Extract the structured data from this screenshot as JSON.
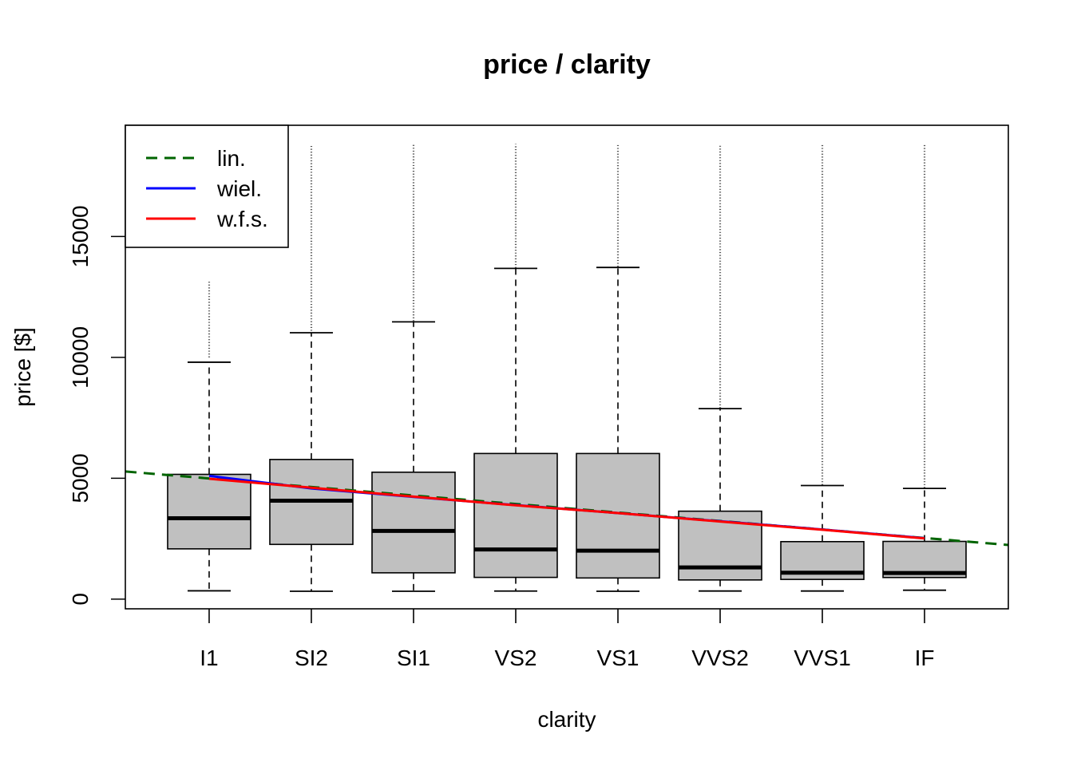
{
  "chart_data": {
    "type": "box",
    "title": "price / clarity",
    "xlabel": "clarity",
    "ylabel": "price [$]",
    "ylim": [
      -400,
      19600
    ],
    "yticks": [
      0,
      5000,
      10000,
      15000
    ],
    "categories": [
      "I1",
      "SI2",
      "SI1",
      "VS2",
      "VS1",
      "VVS2",
      "VVS1",
      "IF"
    ],
    "boxes": [
      {
        "category": "I1",
        "whisker_low": 345,
        "q1": 2080,
        "median": 3344,
        "q3": 5161,
        "whisker_high": 9800,
        "outlier_min": 10000,
        "outlier_max": 13200
      },
      {
        "category": "SI2",
        "whisker_low": 326,
        "q1": 2264,
        "median": 4072,
        "q3": 5777,
        "whisker_high": 11020,
        "outlier_min": 11100,
        "outlier_max": 18804
      },
      {
        "category": "SI1",
        "whisker_low": 326,
        "q1": 1089,
        "median": 2822,
        "q3": 5250,
        "whisker_high": 11470,
        "outlier_min": 11500,
        "outlier_max": 18818
      },
      {
        "category": "VS2",
        "whisker_low": 334,
        "q1": 900,
        "median": 2054,
        "q3": 6024,
        "whisker_high": 13680,
        "outlier_min": 13700,
        "outlier_max": 18823
      },
      {
        "category": "VS1",
        "whisker_low": 327,
        "q1": 876,
        "median": 2005,
        "q3": 6023,
        "whisker_high": 13720,
        "outlier_min": 13750,
        "outlier_max": 18795
      },
      {
        "category": "VVS2",
        "whisker_low": 336,
        "q1": 794,
        "median": 1311,
        "q3": 3638,
        "whisker_high": 7880,
        "outlier_min": 7900,
        "outlier_max": 18768
      },
      {
        "category": "VVS1",
        "whisker_low": 336,
        "q1": 816,
        "median": 1093,
        "q3": 2379,
        "whisker_high": 4700,
        "outlier_min": 4720,
        "outlier_max": 18777
      },
      {
        "category": "IF",
        "whisker_low": 369,
        "q1": 895,
        "median": 1080,
        "q3": 2388,
        "whisker_high": 4580,
        "outlier_min": 4600,
        "outlier_max": 18806
      }
    ],
    "lines": [
      {
        "name": "lin.",
        "color": "#006400",
        "style": "dashed",
        "x": [
          0.18,
          8.82
        ],
        "y": [
          5280,
          2240
        ]
      },
      {
        "name": "wiel.",
        "color": "#0000ff",
        "style": "solid",
        "x": [
          1,
          2,
          3,
          4,
          5,
          6,
          7,
          8
        ],
        "y": [
          5100,
          4580,
          4230,
          3890,
          3560,
          3220,
          2880,
          2520
        ]
      },
      {
        "name": "w.f.s.",
        "color": "#ff0000",
        "style": "solid",
        "x": [
          1,
          2,
          3,
          4,
          5,
          6,
          7,
          8
        ],
        "y": [
          4980,
          4610,
          4240,
          3880,
          3560,
          3210,
          2870,
          2510
        ]
      }
    ],
    "legend": {
      "position": "top-left",
      "entries": [
        {
          "label": "lin.",
          "color": "#006400",
          "style": "dashed"
        },
        {
          "label": "wiel.",
          "color": "#0000ff",
          "style": "solid"
        },
        {
          "label": "w.f.s.",
          "color": "#ff0000",
          "style": "solid"
        }
      ]
    },
    "box_fill": "#c0c0c0",
    "grid": false
  }
}
